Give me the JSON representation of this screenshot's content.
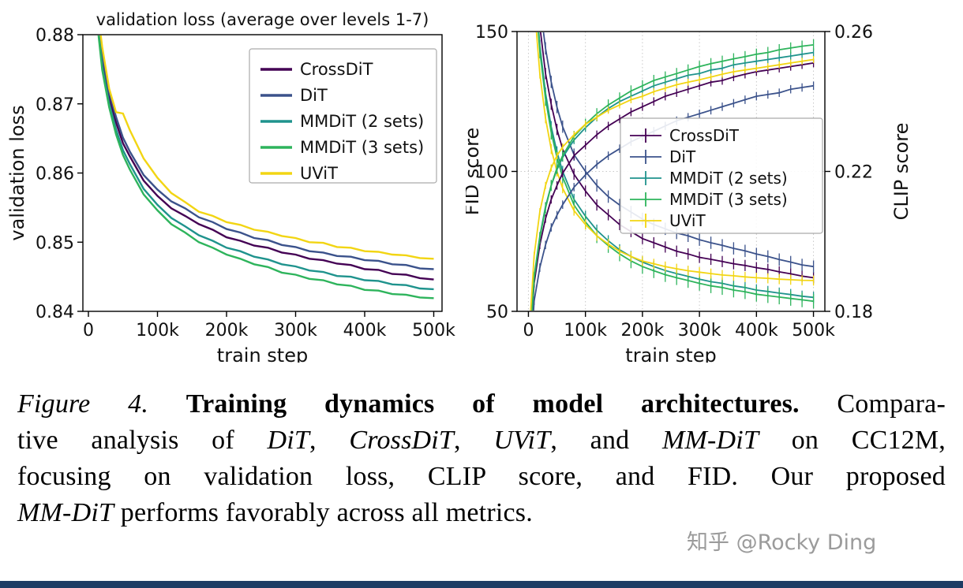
{
  "page": {
    "background": "#ffffff",
    "footer_bar_color": "#1e3c64"
  },
  "watermark": {
    "text": "知乎 @Rocky Ding",
    "color": "#9b9b9b"
  },
  "caption": {
    "lines": [
      [
        {
          "t": "Figure 4. ",
          "s": "i"
        },
        {
          "t": "Training dynamics of model architectures.",
          "s": "b"
        },
        {
          "t": " Compara-",
          "s": "r"
        }
      ],
      [
        {
          "t": "tive analysis of ",
          "s": "r"
        },
        {
          "t": "DiT",
          "s": "i"
        },
        {
          "t": ", ",
          "s": "r"
        },
        {
          "t": "CrossDiT",
          "s": "i"
        },
        {
          "t": ", ",
          "s": "r"
        },
        {
          "t": "UViT",
          "s": "i"
        },
        {
          "t": ", and ",
          "s": "r"
        },
        {
          "t": "MM-DiT",
          "s": "i"
        },
        {
          "t": " on CC12M,",
          "s": "r"
        }
      ],
      [
        {
          "t": "focusing on validation loss, CLIP score, and FID. Our proposed",
          "s": "r"
        }
      ],
      [
        {
          "t": "MM-DiT",
          "s": "i"
        },
        {
          "t": " performs favorably across all metrics.",
          "s": "r"
        }
      ]
    ]
  },
  "chart_data": [
    {
      "type": "line",
      "title": "validation loss (average over levels 1-7)",
      "xlabel": "train step",
      "ylabel": "validation loss",
      "xlim_k": [
        -8,
        512
      ],
      "ylim": [
        0.84,
        0.88
      ],
      "yticks": [
        "0.84",
        "0.85",
        "0.86",
        "0.87",
        "0.88"
      ],
      "xticks": [
        {
          "v": 0,
          "label": "0"
        },
        {
          "v": 100,
          "label": "100k"
        },
        {
          "v": 200,
          "label": "200k"
        },
        {
          "v": 300,
          "label": "300k"
        },
        {
          "v": 400,
          "label": "400k"
        },
        {
          "v": 500,
          "label": "500k"
        }
      ],
      "legend_position": "upper right",
      "grid": false,
      "x_k": [
        2,
        10,
        20,
        30,
        40,
        50,
        60,
        80,
        100,
        120,
        140,
        160,
        180,
        200,
        220,
        240,
        260,
        280,
        300,
        320,
        340,
        360,
        380,
        400,
        420,
        440,
        460,
        480,
        500
      ],
      "series": [
        {
          "name": "CrossDiT",
          "color": "#440154",
          "values": [
            0.894,
            0.885,
            0.8762,
            0.8708,
            0.8673,
            0.8643,
            0.8624,
            0.8589,
            0.8567,
            0.8549,
            0.8538,
            0.8526,
            0.8518,
            0.8507,
            0.8502,
            0.8495,
            0.8492,
            0.8485,
            0.8482,
            0.8476,
            0.8474,
            0.8469,
            0.8467,
            0.8461,
            0.846,
            0.8454,
            0.8453,
            0.8448,
            0.8446
          ]
        },
        {
          "name": "DiT",
          "color": "#3b528b",
          "values": [
            0.895,
            0.886,
            0.8771,
            0.8717,
            0.8681,
            0.8651,
            0.8631,
            0.8597,
            0.8576,
            0.8559,
            0.8549,
            0.8536,
            0.8529,
            0.8519,
            0.8514,
            0.8506,
            0.8503,
            0.8496,
            0.8493,
            0.8487,
            0.8485,
            0.848,
            0.8479,
            0.8474,
            0.8473,
            0.8468,
            0.8467,
            0.8462,
            0.8461
          ]
        },
        {
          "name": "MMDiT (2 sets)",
          "color": "#1f938d",
          "values": [
            0.893,
            0.8845,
            0.8754,
            0.8701,
            0.8663,
            0.8633,
            0.8613,
            0.8577,
            0.8554,
            0.8535,
            0.8523,
            0.851,
            0.8502,
            0.8492,
            0.8487,
            0.8479,
            0.8475,
            0.8468,
            0.8465,
            0.8459,
            0.8457,
            0.8451,
            0.845,
            0.8445,
            0.8444,
            0.8439,
            0.8438,
            0.8433,
            0.8432
          ]
        },
        {
          "name": "MMDiT (3 sets)",
          "color": "#2eb45c",
          "values": [
            0.8925,
            0.8842,
            0.8749,
            0.8695,
            0.8656,
            0.8626,
            0.8605,
            0.8569,
            0.8546,
            0.8526,
            0.8514,
            0.85,
            0.8492,
            0.8482,
            0.8476,
            0.8468,
            0.8464,
            0.8456,
            0.8453,
            0.8447,
            0.8445,
            0.8439,
            0.8437,
            0.8431,
            0.843,
            0.8425,
            0.8424,
            0.842,
            0.8419
          ]
        },
        {
          "name": "UViT",
          "color": "#f2d513",
          "values": [
            0.896,
            0.8862,
            0.8782,
            0.8722,
            0.8688,
            0.8686,
            0.8662,
            0.8621,
            0.8593,
            0.8571,
            0.8558,
            0.8544,
            0.8538,
            0.8529,
            0.8525,
            0.8518,
            0.8515,
            0.8509,
            0.8506,
            0.85,
            0.8499,
            0.8493,
            0.8492,
            0.8487,
            0.8486,
            0.8482,
            0.8481,
            0.8477,
            0.8476
          ]
        }
      ]
    },
    {
      "type": "line-dual-axis",
      "title": "",
      "xlabel": "train step",
      "ylabel_left": "FID score",
      "ylabel_right": "CLIP score",
      "xlim_k": [
        -20,
        520
      ],
      "ylim_left": [
        50,
        150
      ],
      "ylim_right": [
        0.18,
        0.26
      ],
      "yticks_left": [
        "50",
        "100",
        "150"
      ],
      "yticks_right": [
        "0.18",
        "0.22",
        "0.26"
      ],
      "xticks": [
        {
          "v": 0,
          "label": "0"
        },
        {
          "v": 100,
          "label": "100k"
        },
        {
          "v": 200,
          "label": "200k"
        },
        {
          "v": 300,
          "label": "300k"
        },
        {
          "v": 400,
          "label": "400k"
        },
        {
          "v": 500,
          "label": "500k"
        }
      ],
      "legend_position": "center right",
      "grid": "dotted",
      "marker": "errorbar",
      "x_k": [
        2,
        10,
        20,
        30,
        40,
        50,
        60,
        80,
        100,
        120,
        140,
        160,
        180,
        200,
        220,
        240,
        260,
        280,
        300,
        320,
        340,
        360,
        380,
        400,
        420,
        440,
        460,
        480,
        500
      ],
      "series_fid": [
        {
          "name": "CrossDiT",
          "color": "#440154",
          "err": 2.0,
          "values": [
            230,
            175,
            152,
            135,
            124,
            115,
            108,
            99,
            93,
            88,
            84.5,
            81,
            78.5,
            76,
            74.5,
            73,
            71.5,
            70.5,
            69.3,
            68.6,
            67.8,
            67,
            66.4,
            65.6,
            65,
            64.1,
            63.4,
            62.6,
            62
          ]
        },
        {
          "name": "DiT",
          "color": "#3b528b",
          "err": 2.2,
          "values": [
            240,
            185,
            160,
            144,
            132,
            123,
            116,
            106,
            100,
            95,
            91,
            88,
            85.5,
            83,
            81,
            79.5,
            78,
            77,
            75.6,
            74.5,
            73.6,
            72.5,
            71.6,
            70.5,
            69.6,
            68.5,
            67.6,
            66.6,
            66
          ]
        },
        {
          "name": "MMDiT (2 sets)",
          "color": "#1f938d",
          "err": 2.0,
          "values": [
            225,
            170,
            145,
            128,
            116,
            107,
            100,
            90,
            84,
            79,
            75.2,
            72,
            69.6,
            67.6,
            66,
            64.6,
            63.5,
            62.5,
            61.5,
            60.6,
            60,
            59.1,
            58.5,
            57.6,
            57.1,
            56.5,
            56,
            55.4,
            55
          ]
        },
        {
          "name": "MMDiT (3 sets)",
          "color": "#2eb45c",
          "err": 2.6,
          "values": [
            222,
            168,
            143,
            126,
            114,
            105,
            98,
            88,
            82,
            77,
            73.5,
            70.5,
            68,
            66,
            64.5,
            63.1,
            62,
            61,
            60,
            59.1,
            58.5,
            57.6,
            57,
            56.1,
            55.6,
            55.1,
            54.6,
            54.1,
            53.6
          ]
        },
        {
          "name": "UViT",
          "color": "#f2d513",
          "err": 1.8,
          "values": [
            210,
            160,
            135,
            119,
            108,
            100,
            94,
            86,
            81,
            77,
            74,
            71.5,
            69.6,
            68,
            67,
            66,
            65.2,
            64.5,
            64,
            63.5,
            63,
            62.7,
            62.3,
            62,
            61.8,
            61.5,
            61.3,
            61.1,
            61
          ]
        }
      ],
      "series_clip": [
        {
          "name": "CrossDiT",
          "color": "#440154",
          "err": 0.0012,
          "values": [
            0.168,
            0.188,
            0.199,
            0.2065,
            0.212,
            0.216,
            0.2195,
            0.2245,
            0.2275,
            0.2305,
            0.233,
            0.235,
            0.237,
            0.2385,
            0.24,
            0.2415,
            0.2425,
            0.2435,
            0.2445,
            0.2455,
            0.246,
            0.247,
            0.2478,
            0.2485,
            0.249,
            0.2495,
            0.25,
            0.2505,
            0.251
          ]
        },
        {
          "name": "DiT",
          "color": "#3b528b",
          "err": 0.0012,
          "values": [
            0.162,
            0.183,
            0.1925,
            0.199,
            0.204,
            0.2075,
            0.2105,
            0.2155,
            0.219,
            0.222,
            0.2245,
            0.2265,
            0.2285,
            0.23,
            0.2315,
            0.233,
            0.2345,
            0.2355,
            0.2365,
            0.2375,
            0.2385,
            0.2395,
            0.2405,
            0.2415,
            0.242,
            0.2425,
            0.2435,
            0.244,
            0.2445
          ]
        },
        {
          "name": "MMDiT (2 sets)",
          "color": "#1f938d",
          "err": 0.0012,
          "values": [
            0.169,
            0.19,
            0.2015,
            0.21,
            0.216,
            0.2205,
            0.224,
            0.229,
            0.2325,
            0.2355,
            0.238,
            0.24,
            0.2415,
            0.243,
            0.2445,
            0.2455,
            0.2465,
            0.2475,
            0.248,
            0.249,
            0.2495,
            0.2505,
            0.251,
            0.2515,
            0.252,
            0.2525,
            0.253,
            0.2535,
            0.254
          ]
        },
        {
          "name": "MMDiT (3 sets)",
          "color": "#2eb45c",
          "err": 0.0016,
          "values": [
            0.168,
            0.1895,
            0.201,
            0.2095,
            0.216,
            0.221,
            0.2245,
            0.23,
            0.2335,
            0.2365,
            0.239,
            0.241,
            0.243,
            0.2445,
            0.246,
            0.247,
            0.248,
            0.249,
            0.25,
            0.2508,
            0.2515,
            0.2522,
            0.2528,
            0.2535,
            0.254,
            0.2548,
            0.2553,
            0.2558,
            0.2562
          ]
        },
        {
          "name": "UViT",
          "color": "#f2d513",
          "err": 0.001,
          "values": [
            0.175,
            0.196,
            0.2085,
            0.216,
            0.221,
            0.2245,
            0.227,
            0.2305,
            0.2335,
            0.2355,
            0.2375,
            0.239,
            0.2405,
            0.2415,
            0.2428,
            0.2438,
            0.2448,
            0.2455,
            0.2462,
            0.247,
            0.2478,
            0.2485,
            0.249,
            0.2495,
            0.25,
            0.2505,
            0.251,
            0.2515,
            0.252
          ]
        }
      ]
    }
  ]
}
